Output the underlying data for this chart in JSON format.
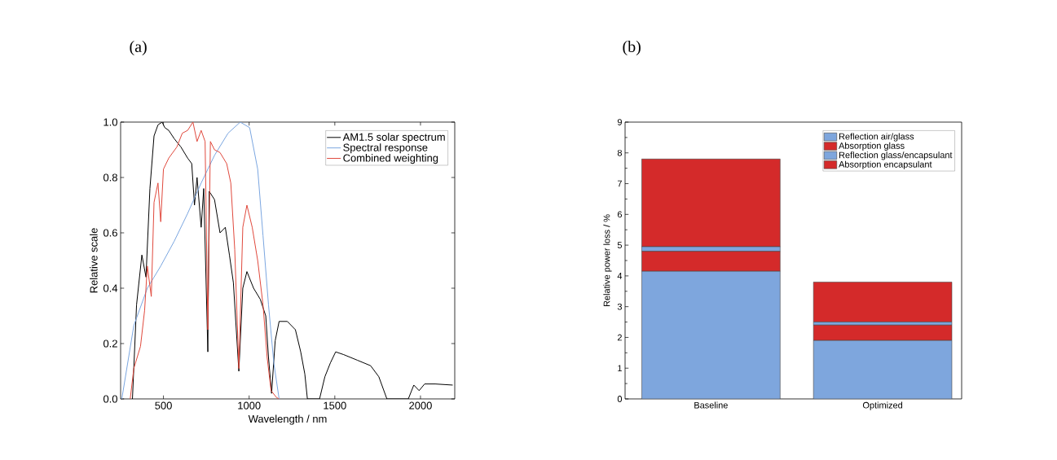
{
  "chart_data": [
    {
      "type": "line",
      "title": "(a)",
      "xlabel": "Wavelength / nm",
      "ylabel": "Relative scale",
      "xlim": [
        250,
        2200
      ],
      "ylim": [
        0,
        1
      ],
      "xticks": [
        500,
        1000,
        1500,
        2000
      ],
      "yticks": [
        {
          "value": 0,
          "label": "0.0"
        },
        {
          "value": 0.2,
          "label": "0.2"
        },
        {
          "value": 0.4,
          "label": "0.4"
        },
        {
          "value": 0.6,
          "label": "0.6"
        },
        {
          "value": 0.8,
          "label": "0.8"
        },
        {
          "value": 1,
          "label": "1.0"
        }
      ],
      "legend": "top right",
      "grid": false,
      "marker": "none",
      "line_style": "solid",
      "series": [
        {
          "name": "AM1.5 solar spectrum",
          "color": "#000000",
          "x": [
            319,
            343,
            374,
            398,
            421,
            445,
            468,
            492,
            508,
            531,
            563,
            602,
            641,
            665,
            681,
            696,
            720,
            735,
            759,
            767,
            798,
            830,
            861,
            885,
            908,
            940,
            963,
            987,
            1026,
            1065,
            1097,
            1113,
            1131,
            1152,
            1175,
            1223,
            1270,
            1301,
            1325,
            1340,
            1411,
            1442,
            1474,
            1505,
            1552,
            1631,
            1709,
            1757,
            1804,
            1929,
            1961,
            1992,
            2024,
            2086,
            2188
          ],
          "values": [
            0,
            0.34,
            0.52,
            0.44,
            0.76,
            0.95,
            0.99,
            1.0,
            0.98,
            0.97,
            0.94,
            0.91,
            0.87,
            0.85,
            0.7,
            0.8,
            0.62,
            0.76,
            0.17,
            0.75,
            0.72,
            0.6,
            0.62,
            0.52,
            0.42,
            0.1,
            0.4,
            0.46,
            0.4,
            0.36,
            0.3,
            0.15,
            0.02,
            0.21,
            0.28,
            0.28,
            0.25,
            0.17,
            0.09,
            0,
            0,
            0.08,
            0.13,
            0.17,
            0.16,
            0.14,
            0.12,
            0.08,
            0,
            0,
            0.05,
            0.03,
            0.054,
            0.054,
            0.05
          ]
        },
        {
          "name": "Spectral response",
          "color": "#7aa6e0",
          "x": [
            257,
            327,
            406,
            484,
            563,
            641,
            720,
            798,
            877,
            948,
            1003,
            1050,
            1081,
            1113,
            1144,
            1175
          ],
          "values": [
            0,
            0.265,
            0.4,
            0.48,
            0.57,
            0.67,
            0.78,
            0.88,
            0.96,
            1.0,
            0.98,
            0.83,
            0.59,
            0.34,
            0.13,
            0
          ]
        },
        {
          "name": "Combined weighting",
          "color": "#e0483c",
          "x": [
            306,
            327,
            366,
            390,
            406,
            429,
            445,
            468,
            484,
            500,
            531,
            578,
            610,
            641,
            672,
            696,
            720,
            743,
            759,
            774,
            798,
            830,
            869,
            893,
            916,
            940,
            963,
            987,
            1018,
            1050,
            1081,
            1105,
            1128,
            1160,
            1175
          ],
          "values": [
            0,
            0.11,
            0.19,
            0.32,
            0.48,
            0.37,
            0.71,
            0.78,
            0.64,
            0.83,
            0.87,
            0.91,
            0.96,
            0.97,
            1.0,
            0.93,
            0.97,
            0.93,
            0.25,
            0.93,
            0.9,
            0.89,
            0.85,
            0.78,
            0.54,
            0.11,
            0.62,
            0.7,
            0.62,
            0.5,
            0.34,
            0.15,
            0.03,
            0.005,
            0
          ]
        }
      ]
    },
    {
      "type": "bar",
      "title": "(b)",
      "ylabel": "Relative power loss / %",
      "categories": [
        "Baseline",
        "Optimized"
      ],
      "stacked": true,
      "ylim": [
        0,
        9
      ],
      "yticks": [
        0,
        1,
        2,
        3,
        4,
        5,
        6,
        7,
        8,
        9
      ],
      "legend": "top right",
      "grid": false,
      "series": [
        {
          "name": "Reflection air/glass",
          "color": "#7ea6dd",
          "values": [
            4.15,
            1.9
          ]
        },
        {
          "name": "Absorption glass",
          "color": "#d42a2a",
          "values": [
            0.65,
            0.5
          ]
        },
        {
          "name": "Reflection glass/encapsulant",
          "color": "#7ea6dd",
          "values": [
            0.15,
            0.1
          ]
        },
        {
          "name": "Absorption encapsulant",
          "color": "#d42a2a",
          "values": [
            2.85,
            1.3
          ]
        }
      ]
    }
  ]
}
